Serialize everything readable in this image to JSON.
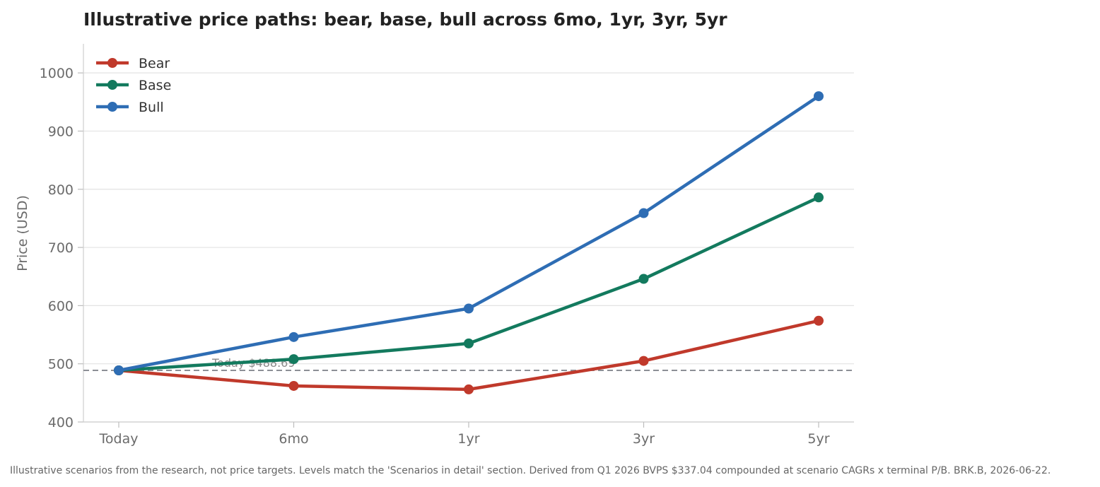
{
  "chart_data": {
    "type": "line",
    "title": "Illustrative price paths: bear, base, bull across 6mo, 1yr, 3yr, 5yr",
    "xlabel": "",
    "ylabel": "Price (USD)",
    "categories": [
      "Today",
      "6mo",
      "1yr",
      "3yr",
      "5yr"
    ],
    "ylim": [
      400,
      1050
    ],
    "yticks": [
      400,
      500,
      600,
      700,
      800,
      900,
      1000
    ],
    "grid": "horizontal",
    "legend_position": "top-left",
    "series": [
      {
        "name": "Bear",
        "color": "#c0392b",
        "values": [
          488.69,
          462,
          456,
          505,
          574
        ]
      },
      {
        "name": "Base",
        "color": "#137a5e",
        "values": [
          488.69,
          508,
          535,
          646,
          786
        ]
      },
      {
        "name": "Bull",
        "color": "#2e6db4",
        "values": [
          488.69,
          546,
          595,
          759,
          960
        ]
      }
    ],
    "reference_line": {
      "value": 488.69,
      "label": "Today $488.69",
      "color": "#8c8f96"
    }
  },
  "footnote": "Illustrative scenarios from the research, not price targets. Levels match the 'Scenarios in detail' section. Derived from Q1 2026 BVPS $337.04 compounded at scenario CAGRs x terminal P/B. BRK.B, 2026-06-22."
}
